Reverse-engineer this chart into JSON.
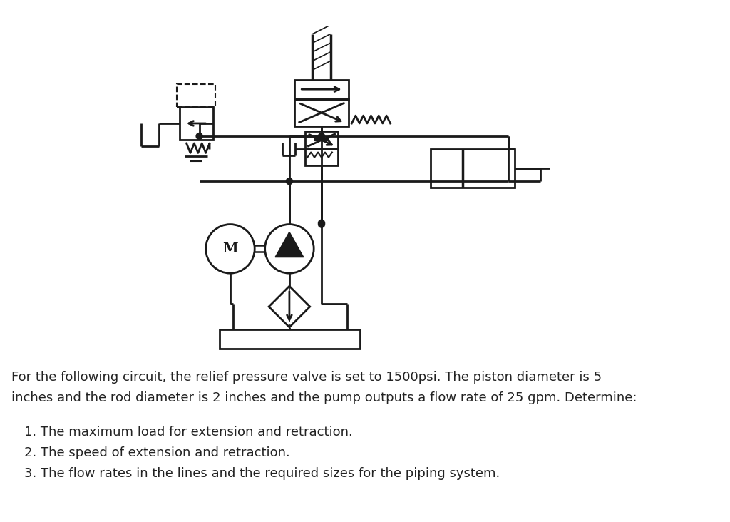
{
  "background_color": "#ffffff",
  "text_color": "#1a1a2e",
  "line_color": "#1a1a1a",
  "paragraph1": "For the following circuit, the relief pressure valve is set to 1500psi. The piston diameter is 5",
  "paragraph2": "inches and the rod diameter is 2 inches and the pump outputs a flow rate of 25 gpm. Determine:",
  "item1": "1. The maximum load for extension and retraction.",
  "item2": "2. The speed of extension and retraction.",
  "item3": "3. The flow rates in the lines and the required sizes for the piping system.",
  "text_fontsize": 13.0,
  "item_fontsize": 13.0,
  "fig_width": 10.24,
  "fig_height": 7.32
}
